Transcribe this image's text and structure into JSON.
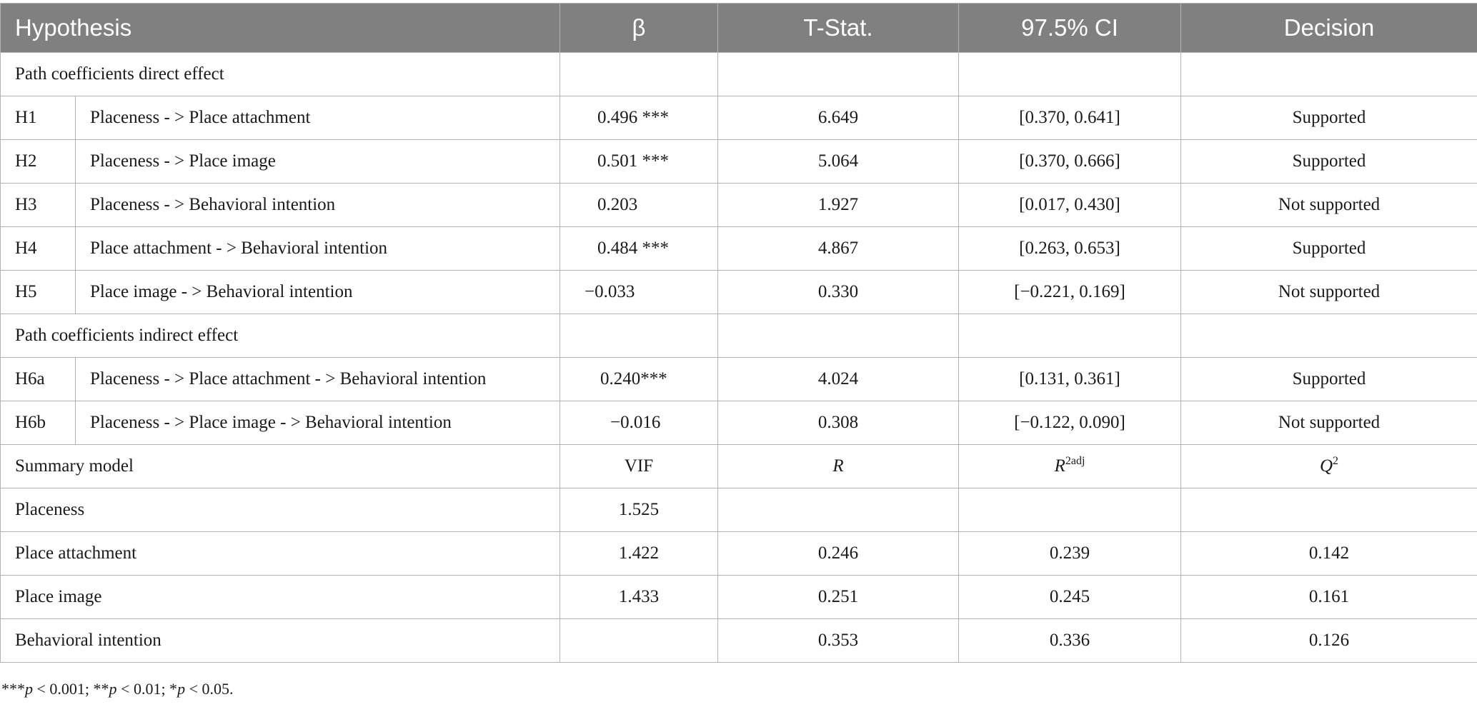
{
  "header": {
    "hypothesis": "Hypothesis",
    "beta": "β",
    "tstat": "T-Stat.",
    "ci": "97.5% CI",
    "decision": "Decision"
  },
  "sections": {
    "direct": "Path coefficients direct effect",
    "indirect": "Path coefficients indirect effect"
  },
  "direct_rows": [
    {
      "code": "H1",
      "path": "Placeness - > Place attachment",
      "beta": "0.496 ***",
      "t": "6.649",
      "ci": "[0.370, 0.641]",
      "decision": "Supported"
    },
    {
      "code": "H2",
      "path": "Placeness - > Place image",
      "beta": "0.501 ***",
      "t": "5.064",
      "ci": "[0.370, 0.666]",
      "decision": "Supported"
    },
    {
      "code": "H3",
      "path": "Placeness - > Behavioral intention",
      "beta": "0.203",
      "t": "1.927",
      "ci": "[0.017, 0.430]",
      "decision": "Not supported"
    },
    {
      "code": "H4",
      "path": "Place attachment - > Behavioral intention",
      "beta": "0.484 ***",
      "t": "4.867",
      "ci": "[0.263, 0.653]",
      "decision": "Supported"
    },
    {
      "code": "H5",
      "path": "Place image - > Behavioral intention",
      "beta": "−0.033",
      "t": "0.330",
      "ci": "[−0.221, 0.169]",
      "decision": "Not supported"
    }
  ],
  "indirect_rows": [
    {
      "code": "H6a",
      "path": "Placeness - > Place attachment - > Behavioral intention",
      "beta": "0.240***",
      "t": "4.024",
      "ci": "[0.131, 0.361]",
      "decision": "Supported"
    },
    {
      "code": "H6b",
      "path": "Placeness - > Place image - > Behavioral intention",
      "beta": "−0.016",
      "t": "0.308",
      "ci": "[−0.122, 0.090]",
      "decision": "Not supported"
    }
  ],
  "summary_header": {
    "label": "Summary model",
    "vif": "VIF",
    "r": "R",
    "r2adj_base": "R",
    "r2adj_sup": "2adj",
    "q2_base": "Q",
    "q2_sup": "2"
  },
  "summary_rows": [
    {
      "label": "Placeness",
      "vif": "1.525",
      "r": "",
      "r2adj": "",
      "q2": ""
    },
    {
      "label": "Place attachment",
      "vif": "1.422",
      "r": "0.246",
      "r2adj": "0.239",
      "q2": "0.142"
    },
    {
      "label": "Place image",
      "vif": "1.433",
      "r": "0.251",
      "r2adj": "0.245",
      "q2": "0.161"
    },
    {
      "label": "Behavioral intention",
      "vif": "",
      "r": "0.353",
      "r2adj": "0.336",
      "q2": "0.126"
    }
  ],
  "footnote": {
    "s1": "***",
    "p1": "p",
    "v1": " < 0.001; **",
    "p2": "p",
    "v2": " < 0.01; *",
    "p3": "p",
    "v3": " < 0.05."
  }
}
